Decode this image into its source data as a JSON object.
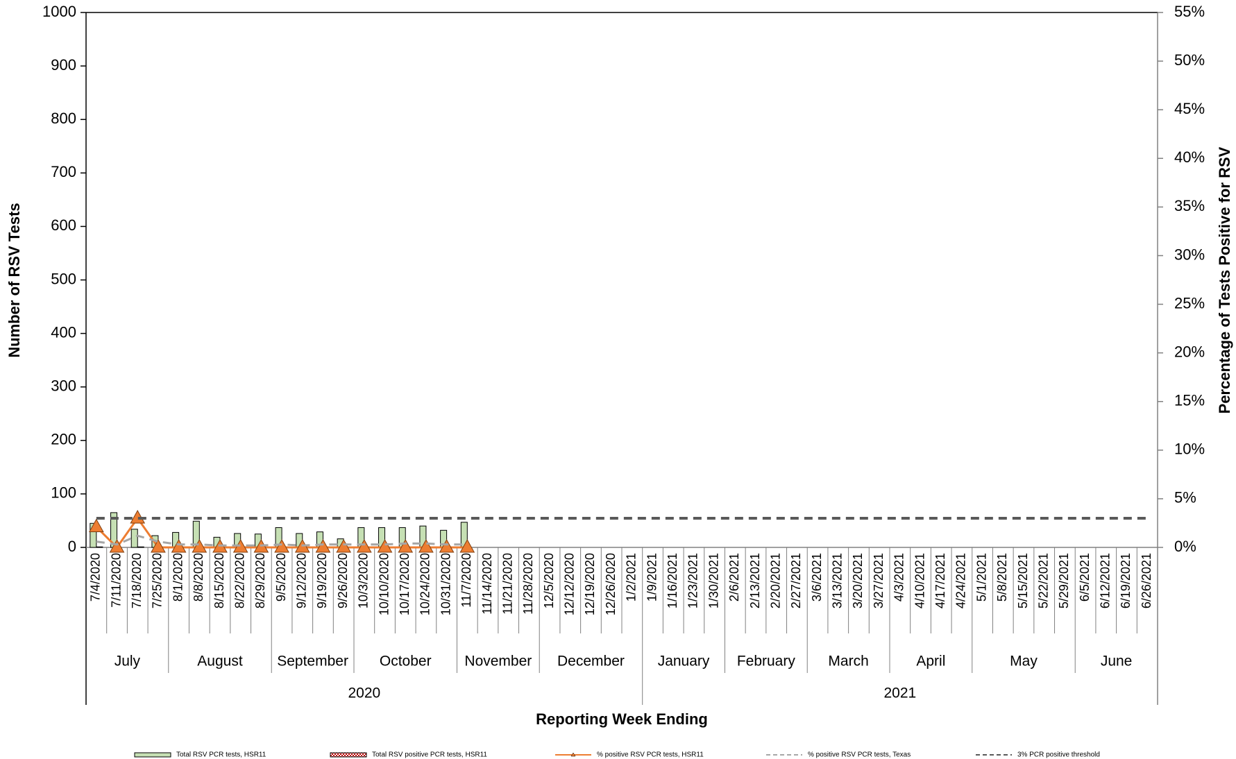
{
  "chart_data": {
    "type": "bar",
    "y_label": "Number of RSV Tests",
    "y2_label": "Percentage of Tests Positive for RSV",
    "x_label": "Reporting Week Ending",
    "categories": [
      "7/4/2020",
      "7/11/2020",
      "7/18/2020",
      "7/25/2020",
      "8/1/2020",
      "8/8/2020",
      "8/15/2020",
      "8/22/2020",
      "8/29/2020",
      "9/5/2020",
      "9/12/2020",
      "9/19/2020",
      "9/26/2020",
      "10/3/2020",
      "10/10/2020",
      "10/17/2020",
      "10/24/2020",
      "10/31/2020",
      "11/7/2020",
      "11/14/2020",
      "11/21/2020",
      "11/28/2020",
      "12/5/2020",
      "12/12/2020",
      "12/19/2020",
      "12/26/2020",
      "1/2/2021",
      "1/9/2021",
      "1/16/2021",
      "1/23/2021",
      "1/30/2021",
      "2/6/2021",
      "2/13/2021",
      "2/20/2021",
      "2/27/2021",
      "3/6/2021",
      "3/13/2021",
      "3/20/2021",
      "3/27/2021",
      "4/3/2021",
      "4/10/2021",
      "4/17/2021",
      "4/24/2021",
      "5/1/2021",
      "5/8/2021",
      "5/15/2021",
      "5/22/2021",
      "5/29/2021",
      "6/5/2021",
      "6/12/2021",
      "6/19/2021",
      "6/26/2021"
    ],
    "month_groups": [
      {
        "label": "July",
        "span": 4
      },
      {
        "label": "August",
        "span": 5
      },
      {
        "label": "September",
        "span": 4
      },
      {
        "label": "October",
        "span": 5
      },
      {
        "label": "November",
        "span": 4
      },
      {
        "label": "December",
        "span": 5
      },
      {
        "label": "January",
        "span": 4
      },
      {
        "label": "February",
        "span": 4
      },
      {
        "label": "March",
        "span": 4
      },
      {
        "label": "April",
        "span": 4
      },
      {
        "label": "May",
        "span": 5
      },
      {
        "label": "June",
        "span": 4
      }
    ],
    "year_groups": [
      {
        "label": "2020",
        "span": 6
      },
      {
        "label": "2021",
        "span": 6
      }
    ],
    "series": [
      {
        "name": "Total RSV PCR tests, HSR11",
        "type": "bar",
        "color": "#c6e0b4",
        "values": [
          45,
          65,
          34,
          22,
          28,
          49,
          19,
          26,
          25,
          37,
          26,
          29,
          16,
          37,
          37,
          37,
          40,
          32,
          47,
          null,
          null,
          null,
          null,
          null,
          null,
          null,
          null,
          null,
          null,
          null,
          null,
          null,
          null,
          null,
          null,
          null,
          null,
          null,
          null,
          null,
          null,
          null,
          null,
          null,
          null,
          null,
          null,
          null,
          null,
          null,
          null,
          null
        ]
      },
      {
        "name": "Total RSV positive PCR tests, HSR11",
        "type": "bar",
        "color": "#c00000",
        "pattern": "checker",
        "values": [
          1,
          0,
          1,
          0,
          0,
          0,
          0,
          0,
          0,
          0,
          0,
          0,
          0,
          0,
          0,
          0,
          0,
          0,
          0,
          null,
          null,
          null,
          null,
          null,
          null,
          null,
          null,
          null,
          null,
          null,
          null,
          null,
          null,
          null,
          null,
          null,
          null,
          null,
          null,
          null,
          null,
          null,
          null,
          null,
          null,
          null,
          null,
          null,
          null,
          null,
          null,
          null
        ]
      },
      {
        "name": "% positive RSV PCR tests, HSR11",
        "type": "line",
        "axis": "y2",
        "color": "#ed7d31",
        "marker": "triangle",
        "values": [
          2.1,
          0,
          3.0,
          0,
          0,
          0,
          0,
          0,
          0,
          0,
          0,
          0,
          0,
          0,
          0,
          0,
          0,
          0,
          0,
          null,
          null,
          null,
          null,
          null,
          null,
          null,
          null,
          null,
          null,
          null,
          null,
          null,
          null,
          null,
          null,
          null,
          null,
          null,
          null,
          null,
          null,
          null,
          null,
          null,
          null,
          null,
          null,
          null,
          null,
          null,
          null,
          null
        ]
      },
      {
        "name": "% positive RSV PCR tests, Texas",
        "type": "line",
        "axis": "y2",
        "color": "#a6a6a6",
        "dashed": true,
        "values": [
          0.6,
          0.3,
          1.2,
          0.6,
          0.3,
          0.3,
          0.2,
          0.2,
          0.2,
          0.3,
          0.2,
          0.3,
          0.3,
          0.3,
          0.3,
          0.4,
          0.4,
          0.3,
          0.3,
          null,
          null,
          null,
          null,
          null,
          null,
          null,
          null,
          null,
          null,
          null,
          null,
          null,
          null,
          null,
          null,
          null,
          null,
          null,
          null,
          null,
          null,
          null,
          null,
          null,
          null,
          null,
          null,
          null,
          null,
          null,
          null,
          null
        ]
      },
      {
        "name": "3% PCR positive threshold",
        "type": "line",
        "axis": "y2",
        "color": "#595959",
        "dashed": true,
        "values": [
          3,
          3,
          3,
          3,
          3,
          3,
          3,
          3,
          3,
          3,
          3,
          3,
          3,
          3,
          3,
          3,
          3,
          3,
          3,
          3,
          3,
          3,
          3,
          3,
          3,
          3,
          3,
          3,
          3,
          3,
          3,
          3,
          3,
          3,
          3,
          3,
          3,
          3,
          3,
          3,
          3,
          3,
          3,
          3,
          3,
          3,
          3,
          3,
          3,
          3,
          3,
          3
        ]
      }
    ],
    "ylim": [
      0,
      1000
    ],
    "yticks": [
      0,
      100,
      200,
      300,
      400,
      500,
      600,
      700,
      800,
      900,
      1000
    ],
    "y2lim": [
      0,
      55
    ],
    "y2ticks": [
      {
        "value": 0,
        "label": "0%"
      },
      {
        "value": 5,
        "label": "5%"
      },
      {
        "value": 10,
        "label": "10%"
      },
      {
        "value": 15,
        "label": "15%"
      },
      {
        "value": 20,
        "label": "20%"
      },
      {
        "value": 25,
        "label": "25%"
      },
      {
        "value": 30,
        "label": "30%"
      },
      {
        "value": 35,
        "label": "35%"
      },
      {
        "value": 40,
        "label": "40%"
      },
      {
        "value": 45,
        "label": "45%"
      },
      {
        "value": 50,
        "label": "50%"
      },
      {
        "value": 55,
        "label": "55%"
      }
    ],
    "grid": false
  }
}
